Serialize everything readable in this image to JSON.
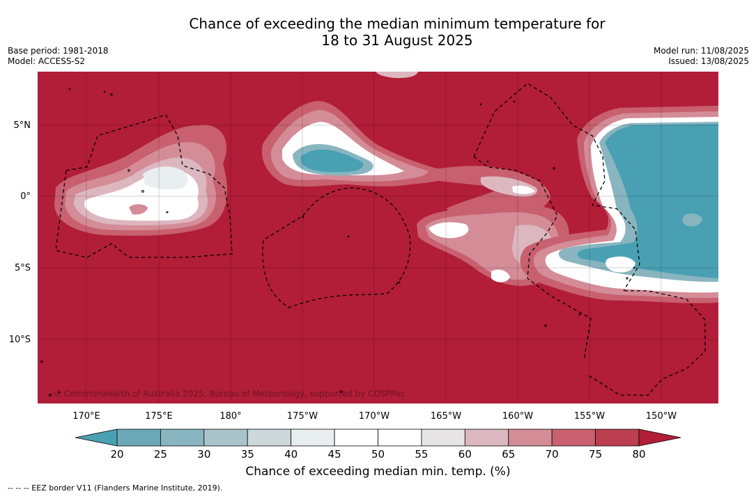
{
  "title": {
    "line1": "Chance of exceeding the median minimum temperature for",
    "line2": "18 to 31 August 2025"
  },
  "meta": {
    "base_period": "Base period: 1981-2018",
    "model": "Model: ACCESS-S2",
    "model_run": "Model run: 11/08/2025",
    "issued": "Issued: 13/08/2025"
  },
  "map": {
    "lat_labels": [
      "5°N",
      "0°",
      "5°S",
      "10°S"
    ],
    "lon_labels": [
      "170°E",
      "175°E",
      "180°",
      "175°W",
      "170°W",
      "165°W",
      "160°W",
      "155°W",
      "150°W"
    ],
    "copyright": "© Commonwealth of Australia 2025, Bureau of Meteorology, supported by COSPPac",
    "background_color": "#b21d38",
    "outline_color": "#000000"
  },
  "colorbar": {
    "tick_labels": [
      "20",
      "25",
      "30",
      "35",
      "40",
      "45",
      "50",
      "55",
      "60",
      "65",
      "70",
      "75",
      "80"
    ],
    "colors": [
      "#4aa0b3",
      "#6ba9b7",
      "#88b5c0",
      "#a9c3ca",
      "#cdd8db",
      "#e8eef0",
      "#ffffff",
      "#ffffff",
      "#e6e4e5",
      "#ddb7bf",
      "#d48c97",
      "#c8606f",
      "#bb3f51",
      "#b21d38"
    ],
    "title": "Chance of exceeding median min. temp. (%)"
  },
  "footer": "-- -- -- EEZ border V11 (Flanders Marine Institute, 2019)."
}
